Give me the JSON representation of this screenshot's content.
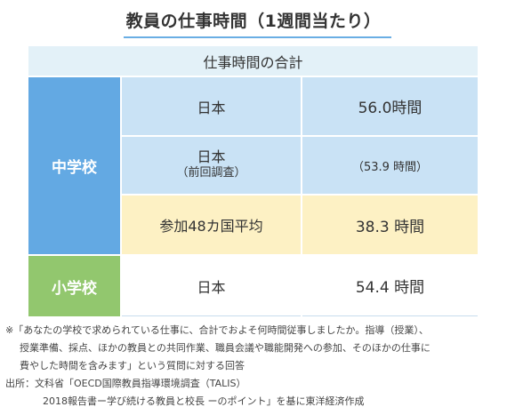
{
  "title": "教員の仕事時間（1週間当たり）",
  "table": {
    "header": "仕事時間の合計",
    "groups": {
      "junior_high": "中学校",
      "elementary": "小学校"
    },
    "rows": [
      {
        "name": "日本",
        "value": "56.0時間"
      },
      {
        "name": "日本",
        "name_sub": "（前回調査）",
        "value": "（53.9 時間）"
      },
      {
        "name": "参加48カ国平均",
        "value": "38.3 時間"
      },
      {
        "name": "日本",
        "value": "54.4 時間"
      }
    ]
  },
  "notes": {
    "line1": "※「あなたの学校で求められている仕事に、合計でおよそ何時間従事しましたか。指導（授業）、",
    "line2": "授業準備、採点、ほかの教員との共同作業、職員会議や職能開発への参加、そのほかの仕事に",
    "line3": "費やした時間を含みます」という質問に対する回答",
    "line4": "出所：文科省「OECD国際教員指導環境調査（TALIS）",
    "line5": "2018報告書ー学び続ける教員と校長 ーのポイント」を基に東洋経済作成"
  },
  "colors": {
    "accent_blue": "#63a9e3",
    "accent_green": "#92c76e",
    "row_blue": "#c9e2f5",
    "row_yellow": "#fdf1c4",
    "header_bg": "#e3f1f8"
  }
}
